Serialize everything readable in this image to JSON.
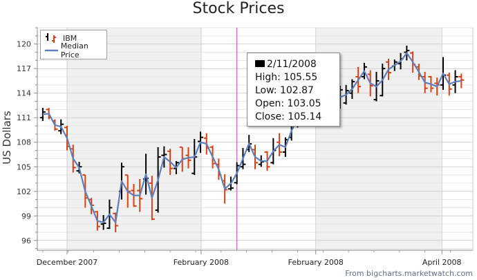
{
  "chart_data": {
    "type": "ohlc",
    "title": "Stock Prices",
    "xlabel": "",
    "ylabel": "US Dollars",
    "ylim": [
      94.8,
      122
    ],
    "xlim": [
      -0.9,
      70.9
    ],
    "yticks": [
      96,
      99,
      102,
      105,
      108,
      111,
      114,
      117,
      120
    ],
    "xtick_labels": [
      {
        "label": "December 2007",
        "index": 4
      },
      {
        "label": "February 2008",
        "index": 26.1
      },
      {
        "label": "February 2008",
        "index": 45
      },
      {
        "label": "April 2008",
        "index": 65.8
      }
    ],
    "grid": true,
    "legend_position": "top-left",
    "series": [
      {
        "name": "IBM",
        "type": "ohlc",
        "up_color": "#000000",
        "down_color": "#d94010",
        "bars_ohlc": [
          [
            111.0,
            112.2,
            110.6,
            111.7
          ],
          [
            112.0,
            112.2,
            110.8,
            111.0
          ],
          [
            110.6,
            110.8,
            109.4,
            109.6
          ],
          [
            109.4,
            110.8,
            109.0,
            110.2
          ],
          [
            109.8,
            110.0,
            107.0,
            107.5
          ],
          [
            107.2,
            107.7,
            104.3,
            104.9
          ],
          [
            104.5,
            105.6,
            104.2,
            105.0
          ],
          [
            104.0,
            104.0,
            100.0,
            101.2
          ],
          [
            101.0,
            101.2,
            99.2,
            100.3
          ],
          [
            99.5,
            99.6,
            97.2,
            97.7
          ],
          [
            98.0,
            99.1,
            97.3,
            98.1
          ],
          [
            97.5,
            101.0,
            97.4,
            100.0
          ],
          [
            99.3,
            99.4,
            97.0,
            97.8
          ],
          [
            102.0,
            105.5,
            101.0,
            105.0
          ],
          [
            104.0,
            104.0,
            100.0,
            102.0
          ],
          [
            102.1,
            102.9,
            100.1,
            100.2
          ],
          [
            102.1,
            103.5,
            99.5,
            101.1
          ],
          [
            103.5,
            106.6,
            101.6,
            103.6
          ],
          [
            103.0,
            103.9,
            98.5,
            98.6
          ],
          [
            99.7,
            107.4,
            99.4,
            106.2
          ],
          [
            106.4,
            107.5,
            104.9,
            106.5
          ],
          [
            106.9,
            107.2,
            104.0,
            104.8
          ],
          [
            104.8,
            105.7,
            104.1,
            105.5
          ],
          [
            107.4,
            107.4,
            104.4,
            106.0
          ],
          [
            106.4,
            107.4,
            104.8,
            105.8
          ],
          [
            104.2,
            108.4,
            104.0,
            106.2
          ],
          [
            108.1,
            109.3,
            106.7,
            108.6
          ],
          [
            108.5,
            109.1,
            106.5,
            107.3
          ],
          [
            107.4,
            107.6,
            104.8,
            105.4
          ],
          [
            105.3,
            106.0,
            103.4,
            104.0
          ],
          [
            103.3,
            104.1,
            100.5,
            102.2
          ],
          [
            102.3,
            103.8,
            102.1,
            102.4
          ],
          [
            103.05,
            105.55,
            102.87,
            105.14
          ],
          [
            105.0,
            107.3,
            104.7,
            105.3
          ],
          [
            107.1,
            108.9,
            106.8,
            107.8
          ],
          [
            107.1,
            107.7,
            104.7,
            105.5
          ],
          [
            105.3,
            106.4,
            105.0,
            105.6
          ],
          [
            106.8,
            106.9,
            104.5,
            105.0
          ],
          [
            105.5,
            108.5,
            105.3,
            107.0
          ],
          [
            108.0,
            109.1,
            106.3,
            106.8
          ],
          [
            106.8,
            108.6,
            106.2,
            108.3
          ],
          [
            108.6,
            110.6,
            108.2,
            110.2
          ],
          [
            110.2,
            111.8,
            109.8,
            111.5
          ],
          [
            112.2,
            112.8,
            110.8,
            111.2
          ],
          [
            111.6,
            113.6,
            111.4,
            113.2
          ],
          [
            113.5,
            113.9,
            112.1,
            112.4
          ],
          [
            112.5,
            114.2,
            112.2,
            113.8
          ],
          [
            114.0,
            114.4,
            112.2,
            112.6
          ],
          [
            114.2,
            114.8,
            112.2,
            112.5
          ],
          [
            112.3,
            114.9,
            112.1,
            114.4
          ],
          [
            112.8,
            115.0,
            112.6,
            114.3
          ],
          [
            114.0,
            115.7,
            113.3,
            115.4
          ],
          [
            116.0,
            117.2,
            114.0,
            114.8
          ],
          [
            116.0,
            117.7,
            115.7,
            117.2
          ],
          [
            116.3,
            116.8,
            113.6,
            114.9
          ],
          [
            113.2,
            116.6,
            113.0,
            115.5
          ],
          [
            113.7,
            117.6,
            113.6,
            117.0
          ],
          [
            117.8,
            118.2,
            115.6,
            116.5
          ],
          [
            117.3,
            118.1,
            116.7,
            117.8
          ],
          [
            117.6,
            118.9,
            116.9,
            118.2
          ],
          [
            119.0,
            119.8,
            118.0,
            119.2
          ],
          [
            118.9,
            119.1,
            116.5,
            117.5
          ],
          [
            117.2,
            117.6,
            115.6,
            116.1
          ],
          [
            116.0,
            116.6,
            114.0,
            114.6
          ],
          [
            116.0,
            116.1,
            114.1,
            114.6
          ],
          [
            115.2,
            115.9,
            113.7,
            115.0
          ],
          [
            115.0,
            118.4,
            114.4,
            116.2
          ],
          [
            116.2,
            116.5,
            113.7,
            114.5
          ],
          [
            115.0,
            116.8,
            114.0,
            116.0
          ],
          [
            116.0,
            116.4,
            114.6,
            115.6
          ]
        ]
      },
      {
        "name": "Median Price",
        "type": "line",
        "color": "#5b7fbf",
        "formula": "(High+Low)/2"
      }
    ],
    "cursor_index": 32,
    "tooltip": {
      "date": "2/11/2008",
      "high": "High: 105.55",
      "low": "Low: 102.87",
      "open": "Open: 103.05",
      "close": "Close: 105.14"
    },
    "source": "From bigcharts.marketwatch.com"
  }
}
